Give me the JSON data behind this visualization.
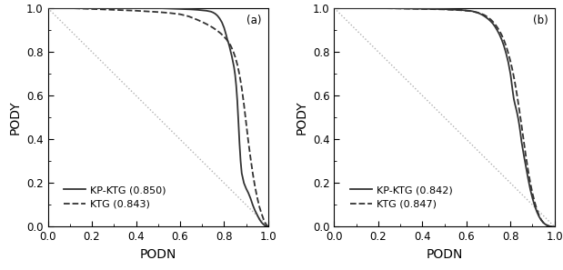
{
  "panel_a": {
    "label": "(a)",
    "solid_label": "KP-KTG (0.850)",
    "dashed_label": "KTG (0.843)",
    "solid_x": [
      0.0,
      0.02,
      0.05,
      0.08,
      0.1,
      0.15,
      0.2,
      0.25,
      0.3,
      0.35,
      0.4,
      0.45,
      0.5,
      0.55,
      0.6,
      0.65,
      0.68,
      0.7,
      0.72,
      0.74,
      0.75,
      0.76,
      0.77,
      0.78,
      0.79,
      0.8,
      0.81,
      0.815,
      0.82,
      0.825,
      0.83,
      0.835,
      0.84,
      0.845,
      0.85,
      0.855,
      0.86,
      0.865,
      0.87,
      0.875,
      0.88,
      0.89,
      0.9,
      0.91,
      0.92,
      0.93,
      0.94,
      0.95,
      0.96,
      0.97,
      0.975,
      0.98,
      0.985,
      0.99,
      0.995,
      1.0
    ],
    "solid_y": [
      1.0,
      1.0,
      1.0,
      1.0,
      1.0,
      1.0,
      1.0,
      1.0,
      1.0,
      1.0,
      1.0,
      1.0,
      1.0,
      0.998,
      0.996,
      0.994,
      0.992,
      0.99,
      0.988,
      0.984,
      0.98,
      0.974,
      0.965,
      0.952,
      0.935,
      0.91,
      0.875,
      0.855,
      0.84,
      0.822,
      0.8,
      0.78,
      0.755,
      0.73,
      0.695,
      0.645,
      0.575,
      0.48,
      0.38,
      0.3,
      0.245,
      0.2,
      0.175,
      0.155,
      0.13,
      0.1,
      0.075,
      0.055,
      0.035,
      0.02,
      0.015,
      0.01,
      0.006,
      0.003,
      0.001,
      0.0
    ],
    "dashed_x": [
      0.0,
      0.02,
      0.05,
      0.08,
      0.1,
      0.15,
      0.2,
      0.25,
      0.3,
      0.35,
      0.4,
      0.45,
      0.5,
      0.55,
      0.6,
      0.62,
      0.64,
      0.65,
      0.66,
      0.68,
      0.7,
      0.72,
      0.74,
      0.75,
      0.76,
      0.77,
      0.775,
      0.78,
      0.785,
      0.79,
      0.795,
      0.8,
      0.81,
      0.82,
      0.83,
      0.84,
      0.85,
      0.86,
      0.87,
      0.88,
      0.89,
      0.9,
      0.91,
      0.92,
      0.93,
      0.94,
      0.95,
      0.96,
      0.97,
      0.98,
      0.99,
      1.0
    ],
    "dashed_y": [
      1.0,
      1.0,
      1.0,
      1.0,
      1.0,
      0.998,
      0.996,
      0.994,
      0.992,
      0.99,
      0.988,
      0.985,
      0.982,
      0.978,
      0.972,
      0.967,
      0.962,
      0.958,
      0.954,
      0.946,
      0.937,
      0.927,
      0.916,
      0.91,
      0.903,
      0.896,
      0.892,
      0.888,
      0.884,
      0.879,
      0.874,
      0.869,
      0.858,
      0.845,
      0.828,
      0.806,
      0.778,
      0.742,
      0.695,
      0.635,
      0.56,
      0.475,
      0.39,
      0.315,
      0.245,
      0.185,
      0.135,
      0.092,
      0.06,
      0.032,
      0.012,
      0.0
    ]
  },
  "panel_b": {
    "label": "(b)",
    "solid_label": "KP-KTG (0.842)",
    "dashed_label": "KTG (0.847)",
    "solid_x": [
      0.0,
      0.02,
      0.05,
      0.1,
      0.15,
      0.2,
      0.25,
      0.3,
      0.35,
      0.4,
      0.45,
      0.5,
      0.52,
      0.54,
      0.56,
      0.58,
      0.6,
      0.62,
      0.63,
      0.64,
      0.65,
      0.66,
      0.67,
      0.68,
      0.69,
      0.7,
      0.71,
      0.72,
      0.73,
      0.74,
      0.75,
      0.76,
      0.77,
      0.78,
      0.79,
      0.8,
      0.81,
      0.815,
      0.82,
      0.825,
      0.83,
      0.835,
      0.84,
      0.845,
      0.85,
      0.86,
      0.87,
      0.88,
      0.89,
      0.9,
      0.91,
      0.92,
      0.93,
      0.94,
      0.95,
      0.96,
      0.97,
      0.98,
      0.99,
      1.0
    ],
    "solid_y": [
      1.0,
      1.0,
      1.0,
      1.0,
      1.0,
      1.0,
      1.0,
      0.999,
      0.998,
      0.997,
      0.996,
      0.995,
      0.994,
      0.993,
      0.992,
      0.991,
      0.989,
      0.987,
      0.985,
      0.982,
      0.979,
      0.975,
      0.97,
      0.964,
      0.957,
      0.949,
      0.94,
      0.929,
      0.915,
      0.898,
      0.879,
      0.856,
      0.828,
      0.793,
      0.752,
      0.698,
      0.62,
      0.585,
      0.562,
      0.542,
      0.52,
      0.495,
      0.465,
      0.43,
      0.39,
      0.33,
      0.275,
      0.22,
      0.17,
      0.13,
      0.095,
      0.068,
      0.046,
      0.03,
      0.018,
      0.01,
      0.005,
      0.002,
      0.001,
      0.0
    ],
    "dashed_x": [
      0.0,
      0.02,
      0.05,
      0.1,
      0.15,
      0.2,
      0.25,
      0.3,
      0.35,
      0.4,
      0.45,
      0.5,
      0.52,
      0.54,
      0.56,
      0.58,
      0.6,
      0.62,
      0.63,
      0.64,
      0.65,
      0.66,
      0.67,
      0.68,
      0.69,
      0.7,
      0.71,
      0.72,
      0.73,
      0.74,
      0.75,
      0.76,
      0.77,
      0.78,
      0.79,
      0.8,
      0.81,
      0.82,
      0.83,
      0.84,
      0.85,
      0.86,
      0.87,
      0.88,
      0.89,
      0.9,
      0.91,
      0.92,
      0.93,
      0.94,
      0.95,
      0.96,
      0.97,
      0.98,
      0.99,
      1.0
    ],
    "dashed_y": [
      1.0,
      1.0,
      1.0,
      1.0,
      1.0,
      1.0,
      0.999,
      0.998,
      0.997,
      0.996,
      0.995,
      0.994,
      0.993,
      0.992,
      0.991,
      0.99,
      0.988,
      0.986,
      0.984,
      0.982,
      0.98,
      0.977,
      0.973,
      0.969,
      0.963,
      0.956,
      0.948,
      0.938,
      0.926,
      0.912,
      0.896,
      0.877,
      0.854,
      0.827,
      0.794,
      0.756,
      0.712,
      0.66,
      0.6,
      0.535,
      0.465,
      0.393,
      0.322,
      0.258,
      0.2,
      0.152,
      0.112,
      0.078,
      0.051,
      0.031,
      0.018,
      0.01,
      0.005,
      0.002,
      0.001,
      0.0
    ]
  },
  "line_color": "#333333",
  "xlabel": "PODN",
  "ylabel": "PODY",
  "xlim": [
    0.0,
    1.0
  ],
  "ylim": [
    0.0,
    1.0
  ],
  "xticks": [
    0.0,
    0.2,
    0.4,
    0.6,
    0.8,
    1.0
  ],
  "yticks": [
    0.0,
    0.2,
    0.4,
    0.6,
    0.8,
    1.0
  ],
  "tick_fontsize": 8.5,
  "label_fontsize": 10,
  "legend_fontsize": 8,
  "diag_color": "#b0b0b0",
  "background_color": "#ffffff"
}
